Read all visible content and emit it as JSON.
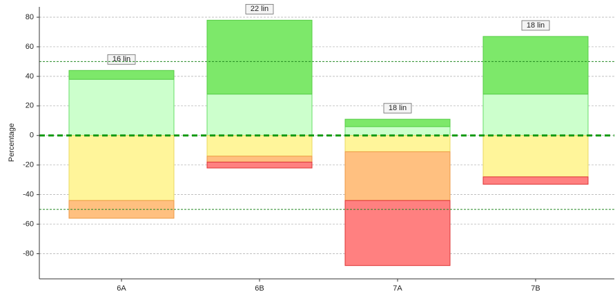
{
  "chart_data": {
    "type": "diverging_stacked_bar",
    "y_label": "Percentage",
    "categories": [
      "6A",
      "6B",
      "7A",
      "7B"
    ],
    "series": [
      {
        "color": "#ccffcc",
        "stroke": "#66dd66",
        "values": [
          38,
          28,
          6,
          28
        ]
      },
      {
        "color": "#7de86a",
        "stroke": "#55cc44",
        "values": [
          6,
          50,
          5,
          39
        ]
      },
      {
        "color": "#fff59a",
        "stroke": "#e8d860",
        "values": [
          -44,
          -14,
          -11,
          -28
        ]
      },
      {
        "color": "#ffc080",
        "stroke": "#ee9944",
        "values": [
          -12,
          -4,
          -33,
          0
        ]
      },
      {
        "color": "#ff8080",
        "stroke": "#dd3333",
        "values": [
          0,
          -4,
          -44,
          -5
        ]
      }
    ],
    "annotations": [
      "16 lin",
      "22 lin",
      "18 lin",
      "18 lin"
    ],
    "reference_lines": [
      {
        "value": 0,
        "color": "#119911",
        "width": 3
      },
      {
        "value": 50,
        "color": "#228822",
        "width": 1
      },
      {
        "value": -50,
        "color": "#228822",
        "width": 1
      }
    ],
    "ylim": [
      -97,
      87
    ],
    "yticks": [
      -80,
      -60,
      -40,
      -20,
      0,
      20,
      40,
      60,
      80
    ],
    "grid": true
  }
}
